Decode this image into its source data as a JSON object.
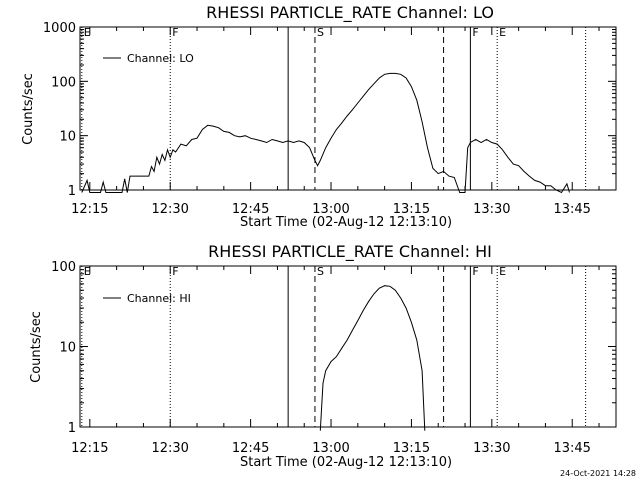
{
  "footer": {
    "timestamp": "24-Oct-2021 14:28"
  },
  "chart_data": [
    {
      "type": "line",
      "title": "RHESSI PARTICLE_RATE Channel: LO",
      "xlabel": "Start Time (02-Aug-12 12:13:10)",
      "ylabel": "Counts/sec",
      "yscale": "log",
      "ylim": [
        1,
        1000
      ],
      "xlim": [
        "12:13:10",
        "13:53:10"
      ],
      "x_ticks": [
        "12:15",
        "12:30",
        "12:45",
        "13:00",
        "13:15",
        "13:30",
        "13:45"
      ],
      "y_ticks": [
        "1",
        "10",
        "100",
        "1000"
      ],
      "legend": {
        "position": "top-left",
        "entries": [
          "Channel: LO"
        ]
      },
      "markers": [
        {
          "label": "E",
          "time": "12:13:30",
          "style": "dotted"
        },
        {
          "label": "F",
          "time": "12:30:00",
          "style": "dotted"
        },
        {
          "label": "",
          "time": "12:52:00",
          "style": "solid"
        },
        {
          "label": "S",
          "time": "12:57:00",
          "style": "dashed"
        },
        {
          "label": "",
          "time": "13:21:00",
          "style": "dashed"
        },
        {
          "label": "F",
          "time": "13:26:00",
          "style": "solid"
        },
        {
          "label": "E",
          "time": "13:31:00",
          "style": "dotted"
        },
        {
          "label": "",
          "time": "13:47:30",
          "style": "dotted"
        }
      ],
      "series": [
        {
          "name": "Channel: LO",
          "points": [
            [
              "12:13:30",
              0.9
            ],
            [
              "12:14:30",
              1.5
            ],
            [
              "12:15:00",
              0.9
            ],
            [
              "12:17:00",
              0.9
            ],
            [
              "12:17:30",
              1.4
            ],
            [
              "12:18:00",
              0.9
            ],
            [
              "12:21:00",
              0.9
            ],
            [
              "12:21:30",
              1.6
            ],
            [
              "12:22:00",
              0.9
            ],
            [
              "12:22:30",
              1.8
            ],
            [
              "12:26:00",
              1.8
            ],
            [
              "12:26:30",
              2.7
            ],
            [
              "12:27:00",
              2.2
            ],
            [
              "12:27:30",
              4.0
            ],
            [
              "12:28:00",
              3.0
            ],
            [
              "12:28:30",
              4.5
            ],
            [
              "12:29:00",
              3.5
            ],
            [
              "12:29:30",
              5.5
            ],
            [
              "12:30:00",
              4.0
            ],
            [
              "12:30:30",
              5.5
            ],
            [
              "12:31:00",
              5.0
            ],
            [
              "12:32:00",
              7.0
            ],
            [
              "12:33:00",
              6.5
            ],
            [
              "12:34:00",
              8.5
            ],
            [
              "12:35:00",
              9.0
            ],
            [
              "12:36:00",
              13
            ],
            [
              "12:37:00",
              15.5
            ],
            [
              "12:38:00",
              15
            ],
            [
              "12:39:00",
              14
            ],
            [
              "12:40:00",
              12
            ],
            [
              "12:41:00",
              11.5
            ],
            [
              "12:42:00",
              10
            ],
            [
              "12:43:00",
              9.5
            ],
            [
              "12:44:00",
              10
            ],
            [
              "12:45:00",
              9
            ],
            [
              "12:46:00",
              8.5
            ],
            [
              "12:47:00",
              8
            ],
            [
              "12:48:00",
              7.5
            ],
            [
              "12:49:00",
              8.5
            ],
            [
              "12:50:00",
              8
            ],
            [
              "12:51:00",
              7.5
            ],
            [
              "12:52:00",
              8
            ],
            [
              "12:53:00",
              7.5
            ],
            [
              "12:54:00",
              8
            ],
            [
              "12:55:00",
              7.5
            ],
            [
              "12:56:00",
              6
            ],
            [
              "12:57:00",
              3.5
            ],
            [
              "12:57:30",
              2.8
            ],
            [
              "12:58:00",
              3.5
            ],
            [
              "12:59:00",
              6
            ],
            [
              "13:00:00",
              9
            ],
            [
              "13:01:00",
              13
            ],
            [
              "13:02:00",
              17
            ],
            [
              "13:03:00",
              23
            ],
            [
              "13:04:00",
              30
            ],
            [
              "13:05:00",
              40
            ],
            [
              "13:06:00",
              53
            ],
            [
              "13:07:00",
              70
            ],
            [
              "13:08:00",
              90
            ],
            [
              "13:09:00",
              115
            ],
            [
              "13:10:00",
              135
            ],
            [
              "13:11:00",
              140
            ],
            [
              "13:12:00",
              140
            ],
            [
              "13:13:00",
              135
            ],
            [
              "13:14:00",
              115
            ],
            [
              "13:15:00",
              80
            ],
            [
              "13:16:00",
              45
            ],
            [
              "13:17:00",
              18
            ],
            [
              "13:18:00",
              6
            ],
            [
              "13:19:00",
              2.5
            ],
            [
              "13:20:00",
              2.0
            ],
            [
              "13:21:00",
              2.2
            ],
            [
              "13:22:00",
              1.8
            ],
            [
              "13:23:00",
              1.7
            ],
            [
              "13:24:00",
              0.9
            ],
            [
              "13:25:00",
              0.9
            ],
            [
              "13:25:30",
              6
            ],
            [
              "13:26:00",
              7.5
            ],
            [
              "13:27:00",
              8.5
            ],
            [
              "13:28:00",
              7.5
            ],
            [
              "13:29:00",
              8.5
            ],
            [
              "13:30:00",
              7.5
            ],
            [
              "13:31:00",
              7
            ],
            [
              "13:32:00",
              5.5
            ],
            [
              "13:33:00",
              4
            ],
            [
              "13:34:00",
              3
            ],
            [
              "13:35:00",
              2.8
            ],
            [
              "13:36:00",
              2.2
            ],
            [
              "13:37:00",
              1.8
            ],
            [
              "13:38:00",
              1.5
            ],
            [
              "13:39:00",
              1.4
            ],
            [
              "13:40:00",
              1.2
            ],
            [
              "13:41:00",
              1.2
            ],
            [
              "13:42:00",
              1.0
            ],
            [
              "13:43:00",
              0.9
            ],
            [
              "13:44:00",
              1.3
            ],
            [
              "13:44:30",
              0.9
            ]
          ]
        }
      ]
    },
    {
      "type": "line",
      "title": "RHESSI PARTICLE_RATE Channel: HI",
      "xlabel": "Start Time (02-Aug-12 12:13:10)",
      "ylabel": "Counts/sec",
      "yscale": "log",
      "ylim": [
        1,
        100
      ],
      "xlim": [
        "12:13:10",
        "13:53:10"
      ],
      "x_ticks": [
        "12:15",
        "12:30",
        "12:45",
        "13:00",
        "13:15",
        "13:30",
        "13:45"
      ],
      "y_ticks": [
        "1",
        "10",
        "100"
      ],
      "legend": {
        "position": "top-left",
        "entries": [
          "Channel: HI"
        ]
      },
      "markers": [
        {
          "label": "E",
          "time": "12:13:30",
          "style": "dotted"
        },
        {
          "label": "F",
          "time": "12:30:00",
          "style": "dotted"
        },
        {
          "label": "",
          "time": "12:52:00",
          "style": "solid"
        },
        {
          "label": "S",
          "time": "12:57:00",
          "style": "dashed"
        },
        {
          "label": "",
          "time": "13:21:00",
          "style": "dashed"
        },
        {
          "label": "F",
          "time": "13:26:00",
          "style": "solid"
        },
        {
          "label": "E",
          "time": "13:31:00",
          "style": "dotted"
        },
        {
          "label": "",
          "time": "13:47:30",
          "style": "dotted"
        }
      ],
      "series": [
        {
          "name": "Channel: HI",
          "points": [
            [
              "12:58:00",
              0.9
            ],
            [
              "12:58:30",
              3.5
            ],
            [
              "12:59:00",
              5
            ],
            [
              "13:00:00",
              6.5
            ],
            [
              "13:01:00",
              7.5
            ],
            [
              "13:02:00",
              9.5
            ],
            [
              "13:03:00",
              12
            ],
            [
              "13:04:00",
              16
            ],
            [
              "13:05:00",
              21
            ],
            [
              "13:06:00",
              28
            ],
            [
              "13:07:00",
              36
            ],
            [
              "13:08:00",
              45
            ],
            [
              "13:09:00",
              53
            ],
            [
              "13:10:00",
              57
            ],
            [
              "13:11:00",
              56
            ],
            [
              "13:12:00",
              50
            ],
            [
              "13:13:00",
              40
            ],
            [
              "13:14:00",
              30
            ],
            [
              "13:15:00",
              20
            ],
            [
              "13:16:00",
              12
            ],
            [
              "13:17:00",
              5
            ],
            [
              "13:17:30",
              0.9
            ]
          ]
        }
      ]
    }
  ]
}
